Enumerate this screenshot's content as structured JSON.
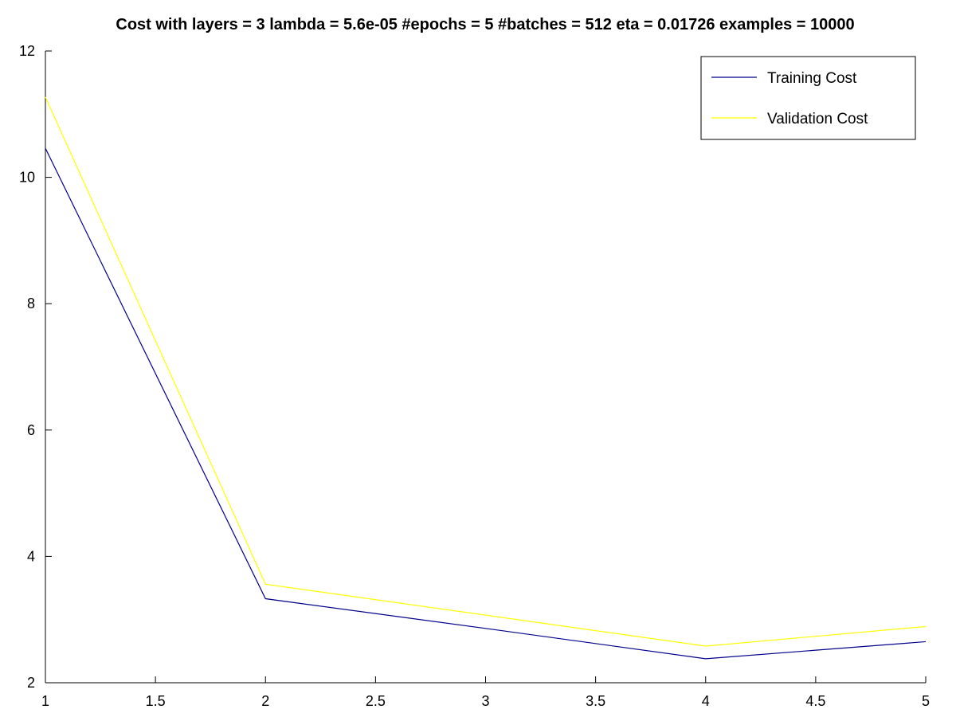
{
  "chart_data": {
    "type": "line",
    "title": "Cost with layers = 3 lambda = 5.6e-05 #epochs = 5 #batches = 512 eta = 0.01726 examples = 10000",
    "xlabel": "",
    "ylabel": "",
    "x": [
      1,
      2,
      3,
      4,
      5
    ],
    "xlim": [
      1,
      5
    ],
    "ylim": [
      2,
      12
    ],
    "xticks": [
      1,
      1.5,
      2,
      2.5,
      3,
      3.5,
      4,
      4.5,
      5
    ],
    "xtick_labels": [
      "1",
      "1.5",
      "2",
      "2.5",
      "3",
      "3.5",
      "4",
      "4.5",
      "5"
    ],
    "yticks": [
      2,
      4,
      6,
      8,
      10,
      12
    ],
    "ytick_labels": [
      "2",
      "4",
      "6",
      "8",
      "10",
      "12"
    ],
    "grid": false,
    "legend_position": "top-right",
    "series": [
      {
        "name": "Training Cost",
        "color": "#00008b",
        "values": [
          10.46,
          3.33,
          2.86,
          2.38,
          2.65
        ]
      },
      {
        "name": "Validation Cost",
        "color": "#ffff00",
        "values": [
          11.27,
          3.56,
          3.07,
          2.58,
          2.89
        ]
      }
    ]
  }
}
